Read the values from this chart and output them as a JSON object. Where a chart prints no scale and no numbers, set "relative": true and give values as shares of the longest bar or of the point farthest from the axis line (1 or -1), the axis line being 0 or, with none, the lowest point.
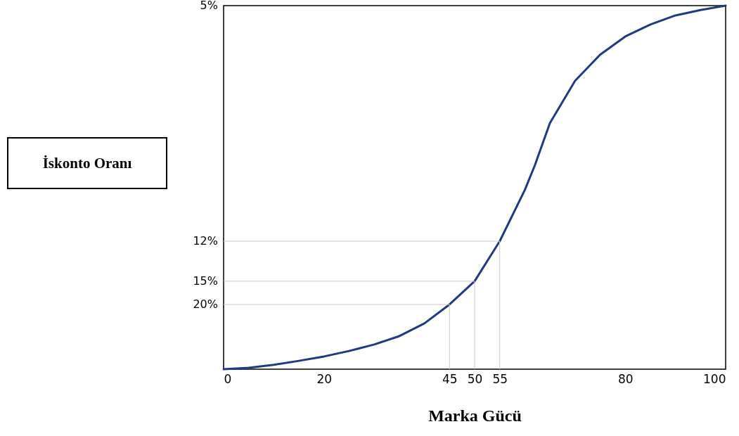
{
  "chart_data": {
    "type": "line",
    "xlabel": "Marka Gücü",
    "annotations": [
      "İskonto Oranı",
      "20%",
      "15%",
      "12%",
      "5%"
    ],
    "x": [
      0,
      5,
      10,
      15,
      20,
      25,
      30,
      35,
      40,
      45,
      50,
      55,
      60,
      62,
      65,
      70,
      75,
      80,
      85,
      90,
      95,
      100
    ],
    "series": [
      {
        "color": "#1f3a80",
        "values": [
          0,
          0.004,
          0.012,
          0.023,
          0.035,
          0.05,
          0.068,
          0.091,
          0.126,
          0.178,
          0.242,
          0.352,
          0.493,
          0.561,
          0.677,
          0.793,
          0.865,
          0.915,
          0.948,
          0.973,
          0.988,
          1
        ]
      }
    ],
    "xlim": [
      0,
      100
    ],
    "relative": true,
    "xticks": [
      0,
      20,
      45,
      50,
      55,
      80,
      100
    ],
    "ref_lines": [
      {
        "axis": "y",
        "value": 0.178,
        "color": "#c8c8c8"
      },
      {
        "axis": "y",
        "value": 0.242,
        "color": "#c8c8c8"
      },
      {
        "axis": "y",
        "value": 0.352,
        "color": "#c8c8c8"
      },
      {
        "axis": "x",
        "value": 45,
        "color": "#c8c8c8"
      },
      {
        "axis": "x",
        "value": 50,
        "color": "#c8c8c8"
      },
      {
        "axis": "x",
        "value": 55,
        "color": "#c8c8c8"
      }
    ],
    "grid": false,
    "marker": "none",
    "line_style": "solid"
  }
}
